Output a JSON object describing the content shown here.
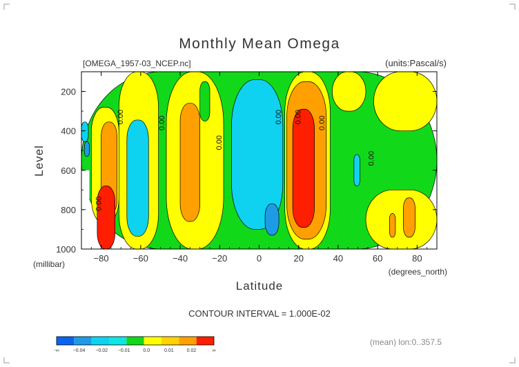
{
  "chart_data": {
    "type": "heatmap",
    "title": "Monthly Mean Omega",
    "subtitle_left": "[OMEGA_1957-03_NCEP.nc]",
    "subtitle_right": "(units:Pascal/s)",
    "xlabel": "Latitude",
    "ylabel": "Level",
    "x_unit": "(degrees_north)",
    "y_unit": "(millibar)",
    "xlim": [
      -90,
      90
    ],
    "ylim": [
      1000,
      100
    ],
    "x_ticks": [
      -80,
      -60,
      -40,
      -20,
      0,
      20,
      40,
      60,
      80
    ],
    "x_tick_labels": [
      "−80",
      "−60",
      "−40",
      "−20",
      "0",
      "20",
      "40",
      "60",
      "80"
    ],
    "y_ticks": [
      200,
      400,
      600,
      800,
      1000
    ],
    "y_tick_labels": [
      "200",
      "400",
      "600",
      "800",
      "1000"
    ],
    "contour_interval": "CONTOUR INTERVAL = 1.000E-02",
    "mean_note": "(mean) lon:0..357.5",
    "colorbar": {
      "colors": [
        "#0a64f0",
        "#1e9be6",
        "#0fd2f0",
        "#0ee6e6",
        "#12d81a",
        "#ffff00",
        "#ffd200",
        "#ffa000",
        "#ff1e00"
      ],
      "labels": [
        "-∞",
        "−0.04",
        "−0.02",
        "−0.01",
        "0.0",
        "0.01",
        "0.02",
        "∞"
      ]
    },
    "contour_labels": [
      {
        "text": "0.00",
        "x": -69,
        "y": 330
      },
      {
        "text": "0.00",
        "x": -48,
        "y": 360
      },
      {
        "text": "0.00",
        "x": -19,
        "y": 460
      },
      {
        "text": "0.00",
        "x": 11,
        "y": 330
      },
      {
        "text": "0.00",
        "x": 21,
        "y": 330
      },
      {
        "text": "0.00",
        "x": 33,
        "y": 360
      },
      {
        "text": "0.00",
        "x": 58,
        "y": 540
      },
      {
        "text": "0.00",
        "x": -80,
        "y": 770
      }
    ],
    "bands": [
      {
        "x": -90,
        "y": 100,
        "w": 180,
        "h": 900,
        "value": 0.0,
        "color": "#12d81a"
      },
      {
        "x": -90,
        "y": 355,
        "w": 3.5,
        "h": 100,
        "value": -0.01,
        "color": "#0fd2f0"
      },
      {
        "x": -88.5,
        "y": 455,
        "w": 2.5,
        "h": 75,
        "value": -0.02,
        "color": "#1e9be6"
      },
      {
        "x": -85,
        "y": 280,
        "w": 14,
        "h": 590,
        "value": 0.01,
        "color": "#ffff00"
      },
      {
        "x": -80,
        "y": 355,
        "w": 8,
        "h": 470,
        "value": 0.02,
        "color": "#ffa000"
      },
      {
        "x": -82,
        "y": 680,
        "w": 9,
        "h": 320,
        "value": 0.03,
        "color": "#ff1e00"
      },
      {
        "x": -71,
        "y": 100,
        "w": 20,
        "h": 900,
        "value": 0.01,
        "color": "#ffff00"
      },
      {
        "x": -67,
        "y": 345,
        "w": 11,
        "h": 590,
        "value": -0.01,
        "color": "#0fd2f0"
      },
      {
        "x": -47,
        "y": 100,
        "w": 29,
        "h": 900,
        "value": 0.01,
        "color": "#ffff00"
      },
      {
        "x": -40,
        "y": 260,
        "w": 10,
        "h": 600,
        "value": 0.02,
        "color": "#ffa000"
      },
      {
        "x": -30,
        "y": 150,
        "w": 5,
        "h": 200,
        "value": 0.0,
        "color": "#12d81a"
      },
      {
        "x": -14,
        "y": 140,
        "w": 26,
        "h": 760,
        "value": -0.01,
        "color": "#0fd2f0"
      },
      {
        "x": 3,
        "y": 770,
        "w": 7,
        "h": 160,
        "value": -0.02,
        "color": "#1e9be6"
      },
      {
        "x": 13,
        "y": 100,
        "w": 23,
        "h": 900,
        "value": 0.01,
        "color": "#ffff00"
      },
      {
        "x": 14,
        "y": 150,
        "w": 20,
        "h": 800,
        "value": 0.02,
        "color": "#ffa000"
      },
      {
        "x": 17,
        "y": 290,
        "w": 11,
        "h": 600,
        "value": 0.03,
        "color": "#ff1e00"
      },
      {
        "x": 37,
        "y": 100,
        "w": 17,
        "h": 200,
        "value": 0.01,
        "color": "#ffff00"
      },
      {
        "x": 58,
        "y": 100,
        "w": 32,
        "h": 300,
        "value": 0.01,
        "color": "#ffff00"
      },
      {
        "x": 54,
        "y": 700,
        "w": 36,
        "h": 300,
        "value": 0.01,
        "color": "#ffff00"
      },
      {
        "x": 73,
        "y": 740,
        "w": 6,
        "h": 200,
        "value": 0.02,
        "color": "#ffa000"
      },
      {
        "x": 66,
        "y": 820,
        "w": 3,
        "h": 120,
        "value": 0.02,
        "color": "#ffa000"
      },
      {
        "x": 48,
        "y": 520,
        "w": 3,
        "h": 160,
        "value": -0.01,
        "color": "#0fd2f0"
      }
    ],
    "missing": [
      {
        "x": -90,
        "y": 600,
        "w": 4,
        "h": 400
      },
      {
        "x": -86,
        "y": 850,
        "w": 2,
        "h": 150
      }
    ]
  }
}
